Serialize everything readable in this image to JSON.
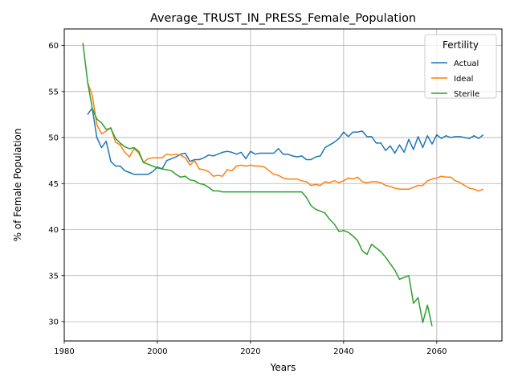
{
  "chart_data": {
    "type": "line",
    "title": "Average_TRUST_IN_PRESS_Female_Population",
    "xlabel": "Years",
    "ylabel": "% of Female Population",
    "xlim": [
      1980,
      2074
    ],
    "ylim": [
      27.9,
      61.8
    ],
    "xticks": [
      1980,
      2000,
      2020,
      2040,
      2060
    ],
    "yticks": [
      30,
      35,
      40,
      45,
      50,
      55,
      60
    ],
    "grid": true,
    "legend": {
      "title": "Fertility",
      "placement": "top-right"
    },
    "series": [
      {
        "name": "Actual",
        "color": "#1f77b4",
        "x": [
          1985,
          1986,
          1987,
          1988,
          1989,
          1990,
          1991,
          1992,
          1993,
          1994,
          1995,
          1996,
          1997,
          1998,
          1999,
          2000,
          2001,
          2002,
          2003,
          2004,
          2005,
          2006,
          2007,
          2008,
          2009,
          2010,
          2011,
          2012,
          2013,
          2014,
          2015,
          2016,
          2017,
          2018,
          2019,
          2020,
          2021,
          2022,
          2023,
          2024,
          2025,
          2026,
          2027,
          2028,
          2029,
          2030,
          2031,
          2032,
          2033,
          2034,
          2035,
          2036,
          2037,
          2038,
          2039,
          2040,
          2041,
          2042,
          2043,
          2044,
          2045,
          2046,
          2047,
          2048,
          2049,
          2050,
          2051,
          2052,
          2053,
          2054,
          2055,
          2056,
          2057,
          2058,
          2059,
          2060,
          2061,
          2062,
          2063,
          2064,
          2065,
          2066,
          2067,
          2068,
          2069,
          2070
        ],
        "y": [
          52.5,
          53.2,
          50.0,
          48.9,
          49.6,
          47.4,
          46.9,
          46.9,
          46.4,
          46.2,
          46.0,
          46.0,
          46.0,
          46.0,
          46.3,
          46.8,
          46.6,
          47.5,
          47.7,
          47.9,
          48.2,
          48.3,
          47.4,
          47.6,
          47.6,
          47.8,
          48.1,
          48.0,
          48.2,
          48.4,
          48.5,
          48.4,
          48.2,
          48.4,
          47.7,
          48.5,
          48.2,
          48.3,
          48.3,
          48.3,
          48.3,
          48.8,
          48.2,
          48.2,
          48.0,
          47.9,
          48.0,
          47.6,
          47.6,
          47.9,
          48.0,
          48.9,
          49.2,
          49.5,
          49.9,
          50.6,
          50.1,
          50.6,
          50.6,
          50.7,
          50.1,
          50.1,
          49.4,
          49.4,
          48.6,
          49.1,
          48.3,
          49.2,
          48.4,
          49.8,
          48.7,
          50.1,
          48.9,
          50.2,
          49.3,
          50.3,
          49.9,
          50.2,
          50.0,
          50.1,
          50.1,
          50.0,
          49.9,
          50.2,
          49.9,
          50.3
        ]
      },
      {
        "name": "Ideal",
        "color": "#ff7f0e",
        "x": [
          1985,
          1986,
          1987,
          1988,
          1989,
          1990,
          1991,
          1992,
          1993,
          1994,
          1995,
          1996,
          1997,
          1998,
          1999,
          2000,
          2001,
          2002,
          2003,
          2004,
          2005,
          2006,
          2007,
          2008,
          2009,
          2010,
          2011,
          2012,
          2013,
          2014,
          2015,
          2016,
          2017,
          2018,
          2019,
          2020,
          2021,
          2022,
          2023,
          2024,
          2025,
          2026,
          2027,
          2028,
          2029,
          2030,
          2031,
          2032,
          2033,
          2034,
          2035,
          2036,
          2037,
          2038,
          2039,
          2040,
          2041,
          2042,
          2043,
          2044,
          2045,
          2046,
          2047,
          2048,
          2049,
          2050,
          2051,
          2052,
          2053,
          2054,
          2055,
          2056,
          2057,
          2058,
          2059,
          2060,
          2061,
          2062,
          2063,
          2064,
          2065,
          2066,
          2067,
          2068,
          2069,
          2070
        ],
        "y": [
          56.0,
          54.6,
          51.4,
          50.4,
          50.7,
          51.1,
          49.5,
          49.2,
          48.4,
          47.9,
          48.8,
          48.3,
          47.3,
          47.7,
          47.8,
          47.8,
          47.8,
          48.2,
          48.1,
          48.2,
          48.1,
          47.8,
          47.0,
          47.5,
          46.6,
          46.5,
          46.3,
          45.8,
          45.9,
          45.8,
          46.5,
          46.4,
          46.9,
          47.0,
          46.9,
          47.0,
          46.9,
          46.9,
          46.8,
          46.4,
          46.0,
          45.9,
          45.6,
          45.5,
          45.5,
          45.5,
          45.3,
          45.2,
          44.8,
          44.9,
          44.8,
          45.2,
          45.1,
          45.3,
          45.1,
          45.3,
          45.6,
          45.5,
          45.7,
          45.2,
          45.1,
          45.2,
          45.2,
          45.1,
          44.8,
          44.7,
          44.5,
          44.4,
          44.4,
          44.4,
          44.6,
          44.8,
          44.8,
          45.3,
          45.5,
          45.6,
          45.8,
          45.7,
          45.7,
          45.3,
          45.1,
          44.8,
          44.5,
          44.4,
          44.2,
          44.4
        ]
      },
      {
        "name": "Sterile",
        "color": "#2ca02c",
        "x": [
          1984,
          1985,
          1986,
          1987,
          1988,
          1989,
          1990,
          1991,
          1992,
          1993,
          1994,
          1995,
          1996,
          1997,
          1998,
          1999,
          2000,
          2001,
          2002,
          2003,
          2004,
          2005,
          2006,
          2007,
          2008,
          2009,
          2010,
          2011,
          2012,
          2013,
          2014,
          2015,
          2016,
          2017,
          2018,
          2019,
          2020,
          2021,
          2022,
          2023,
          2024,
          2025,
          2026,
          2027,
          2028,
          2029,
          2030,
          2031,
          2032,
          2033,
          2034,
          2035,
          2036,
          2037,
          2038,
          2039,
          2040,
          2041,
          2042,
          2043,
          2044,
          2045,
          2046,
          2047,
          2048,
          2049,
          2050,
          2051,
          2052,
          2053,
          2054,
          2055,
          2056,
          2057,
          2058,
          2059
        ],
        "y": [
          60.3,
          56.1,
          53.2,
          52.0,
          51.6,
          50.9,
          51.0,
          49.9,
          49.4,
          49.0,
          48.8,
          48.9,
          48.5,
          47.3,
          47.1,
          46.9,
          46.7,
          46.6,
          46.5,
          46.4,
          46.0,
          45.7,
          45.8,
          45.4,
          45.3,
          45.0,
          44.9,
          44.6,
          44.2,
          44.2,
          44.1,
          44.1,
          44.1,
          44.1,
          44.1,
          44.1,
          44.1,
          44.1,
          44.1,
          44.1,
          44.1,
          44.1,
          44.1,
          44.1,
          44.1,
          44.1,
          44.1,
          44.1,
          43.5,
          42.6,
          42.2,
          42.0,
          41.8,
          41.1,
          40.6,
          39.8,
          39.9,
          39.7,
          39.3,
          38.8,
          37.7,
          37.3,
          38.4,
          38.0,
          37.6,
          37.0,
          36.3,
          35.6,
          34.6,
          34.8,
          35.0,
          32.0,
          32.6,
          29.9,
          31.8,
          29.5
        ]
      }
    ]
  }
}
